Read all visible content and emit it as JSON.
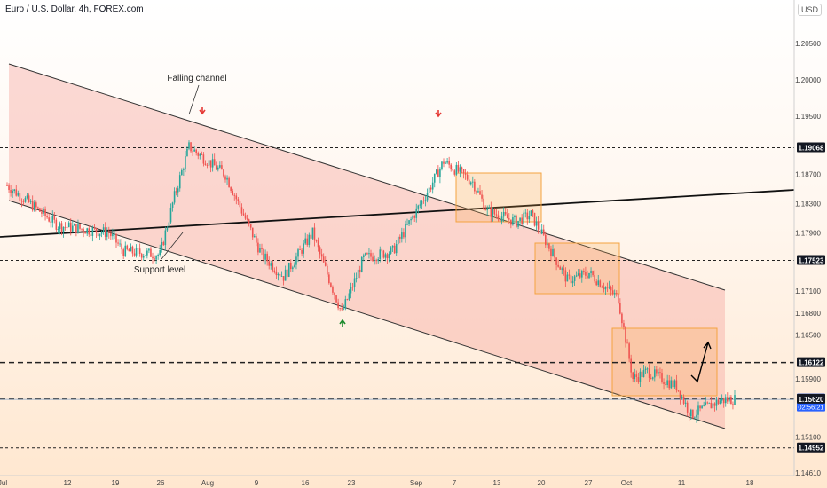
{
  "header": {
    "title": "Euro / U.S. Dollar, 4h, FOREX.com",
    "currency": "USD"
  },
  "annotations": {
    "falling_channel": "Falling channel",
    "support_level": "Support level"
  },
  "colors": {
    "up": "#26a69a",
    "down": "#ef5350",
    "channel_fill": "#f6a6a0",
    "box": "#f4a340",
    "arrow_up": "#1b8a2c",
    "arrow_down": "#e53935"
  },
  "chart_data": {
    "type": "candlestick",
    "symbol": "EURUSD",
    "timeframe": "4h",
    "ylim": [
      1.1445,
      1.2085
    ],
    "y_ticks": [
      "1.20500",
      "1.20000",
      "1.19500",
      "1.18700",
      "1.18300",
      "1.17900",
      "1.17100",
      "1.16800",
      "1.16500",
      "1.15900",
      "1.15100",
      "1.14610"
    ],
    "x_ticks": [
      "Jul",
      "12",
      "19",
      "26",
      "Aug",
      "9",
      "16",
      "23",
      "Sep",
      "7",
      "13",
      "20",
      "27",
      "Oct",
      "11",
      "18"
    ],
    "price_labels": [
      {
        "value": "1.19068"
      },
      {
        "value": "1.17523"
      },
      {
        "value": "1.16122"
      },
      {
        "value": "1.15623",
        "sub": "02:56:21",
        "current": true
      },
      {
        "value": "1.15620"
      },
      {
        "value": "1.14952"
      }
    ],
    "approx_path": [
      {
        "date": "Jul 5",
        "price": 1.1855
      },
      {
        "date": "Jul 12",
        "price": 1.18
      },
      {
        "date": "Jul 19",
        "price": 1.179
      },
      {
        "date": "Jul 21",
        "price": 1.1765
      },
      {
        "date": "Jul 26",
        "price": 1.176
      },
      {
        "date": "Jul 28",
        "price": 1.184
      },
      {
        "date": "Jul 30",
        "price": 1.1908
      },
      {
        "date": "Aug 4",
        "price": 1.187
      },
      {
        "date": "Aug 9",
        "price": 1.176
      },
      {
        "date": "Aug 12",
        "price": 1.173
      },
      {
        "date": "Aug 16",
        "price": 1.179
      },
      {
        "date": "Aug 17",
        "price": 1.176
      },
      {
        "date": "Aug 20",
        "price": 1.168
      },
      {
        "date": "Aug 23",
        "price": 1.1755
      },
      {
        "date": "Aug 27",
        "price": 1.1765
      },
      {
        "date": "Sep 1",
        "price": 1.185
      },
      {
        "date": "Sep 3",
        "price": 1.1888
      },
      {
        "date": "Sep 7",
        "price": 1.186
      },
      {
        "date": "Sep 9",
        "price": 1.182
      },
      {
        "date": "Sep 13",
        "price": 1.1805
      },
      {
        "date": "Sep 15",
        "price": 1.1815
      },
      {
        "date": "Sep 20",
        "price": 1.1725
      },
      {
        "date": "Sep 23",
        "price": 1.1735
      },
      {
        "date": "Sep 27",
        "price": 1.17
      },
      {
        "date": "Sep 29",
        "price": 1.159
      },
      {
        "date": "Oct 1",
        "price": 1.16
      },
      {
        "date": "Oct 5",
        "price": 1.158
      },
      {
        "date": "Oct 7",
        "price": 1.154
      },
      {
        "date": "Oct 11",
        "price": 1.156
      },
      {
        "date": "Oct 13",
        "price": 1.1562
      }
    ]
  }
}
